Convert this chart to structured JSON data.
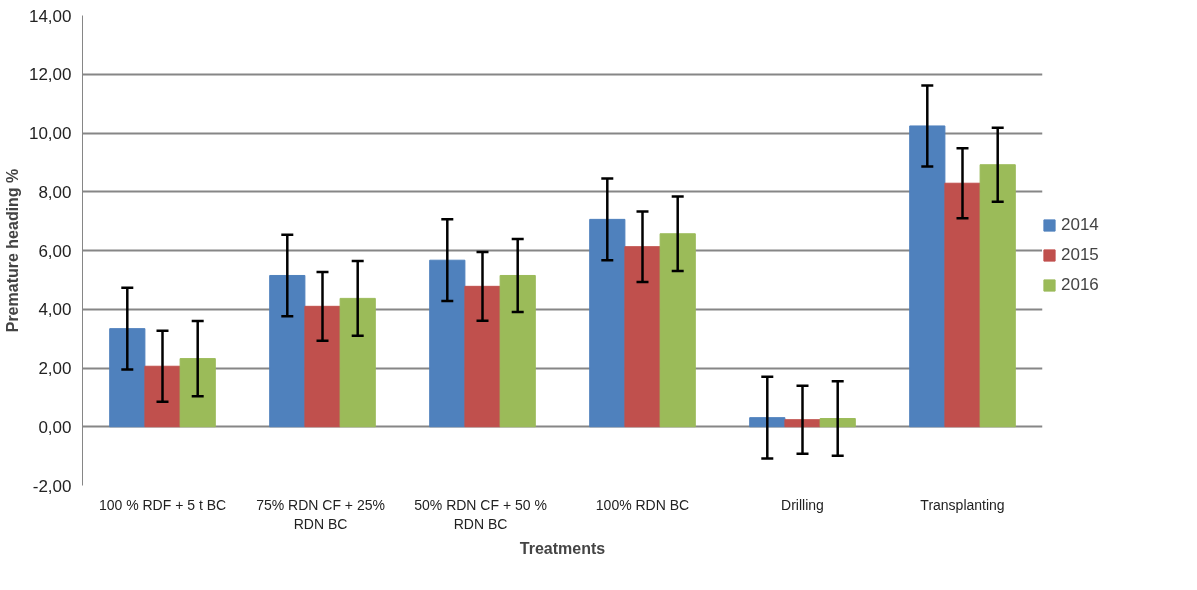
{
  "chart_data": {
    "type": "bar",
    "xlabel": "Treatments",
    "ylabel": "Premature heading %",
    "categories": [
      "100 % RDF + 5 t BC",
      "75% RDN  CF + 25% RDN  BC",
      "50% RDN CF  + 50 % RDN  BC",
      "100% RDN BC",
      "Drilling",
      "Transplanting"
    ],
    "series": [
      {
        "name": "2014",
        "color": "#4f81bd",
        "values": [
          3.34,
          5.15,
          5.67,
          7.06,
          0.31,
          10.24
        ],
        "errors": [
          1.39,
          1.39,
          1.39,
          1.39,
          1.39,
          1.38
        ]
      },
      {
        "name": "2015",
        "color": "#c0504d",
        "values": [
          2.06,
          4.1,
          4.78,
          6.13,
          0.24,
          8.29
        ],
        "errors": [
          1.21,
          1.17,
          1.17,
          1.2,
          1.16,
          1.19
        ]
      },
      {
        "name": "2016",
        "color": "#9bbb59",
        "values": [
          2.32,
          4.37,
          5.15,
          6.57,
          0.28,
          8.92
        ],
        "errors": [
          1.28,
          1.27,
          1.24,
          1.27,
          1.27,
          1.26
        ]
      }
    ],
    "ylim": [
      -2,
      14
    ],
    "yticks": [
      {
        "value": -2,
        "label": "-2,00"
      },
      {
        "value": 0,
        "label": "0,00"
      },
      {
        "value": 2,
        "label": "2,00"
      },
      {
        "value": 4,
        "label": "4,00"
      },
      {
        "value": 6,
        "label": "6,00"
      },
      {
        "value": 8,
        "label": "8,00"
      },
      {
        "value": 10,
        "label": "10,00"
      },
      {
        "value": 12,
        "label": "12,00"
      },
      {
        "value": 14,
        "label": "14,00"
      }
    ],
    "grid": "y",
    "legend": "right"
  }
}
